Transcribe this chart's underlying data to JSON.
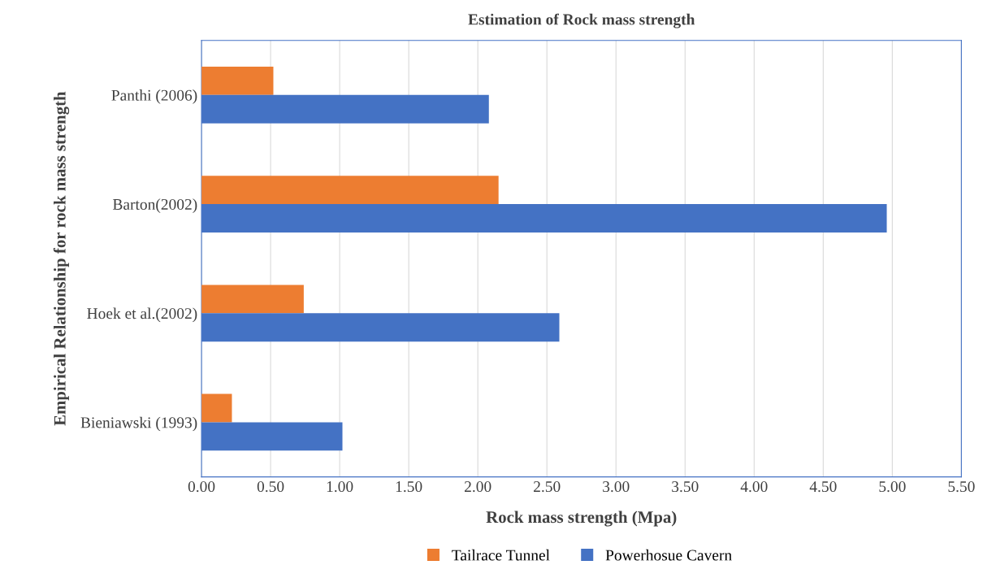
{
  "chart_data": {
    "type": "bar",
    "orientation": "horizontal",
    "title": "Estimation of Rock mass strength",
    "xlabel": "Rock mass strength (Mpa)",
    "ylabel": "Empirical Relationship for rock mass strength",
    "categories": [
      "Panthi (2006)",
      "Barton(2002)",
      "Hoek et al.(2002)",
      "Bieniawski (1993)"
    ],
    "series": [
      {
        "name": "Tailrace Tunnel",
        "color": "#ed7d31",
        "values": [
          0.52,
          2.15,
          0.74,
          0.22
        ]
      },
      {
        "name": "Powerhosue Cavern",
        "color": "#4472c4",
        "values": [
          2.08,
          4.96,
          2.59,
          1.02
        ]
      }
    ],
    "xlim": [
      0,
      5.5
    ],
    "xticks": [
      {
        "value": 0,
        "label": "0.00"
      },
      {
        "value": 0.5,
        "label": "0.50"
      },
      {
        "value": 1,
        "label": "1.00"
      },
      {
        "value": 1.5,
        "label": "1.50"
      },
      {
        "value": 2,
        "label": "2.00"
      },
      {
        "value": 2.5,
        "label": "2.50"
      },
      {
        "value": 3,
        "label": "3.00"
      },
      {
        "value": 3.5,
        "label": "3.50"
      },
      {
        "value": 4,
        "label": "4.00"
      },
      {
        "value": 4.5,
        "label": "4.50"
      },
      {
        "value": 5,
        "label": "5.00"
      },
      {
        "value": 5.5,
        "label": "5.50"
      }
    ],
    "grid": "x",
    "legend": "bottom"
  }
}
